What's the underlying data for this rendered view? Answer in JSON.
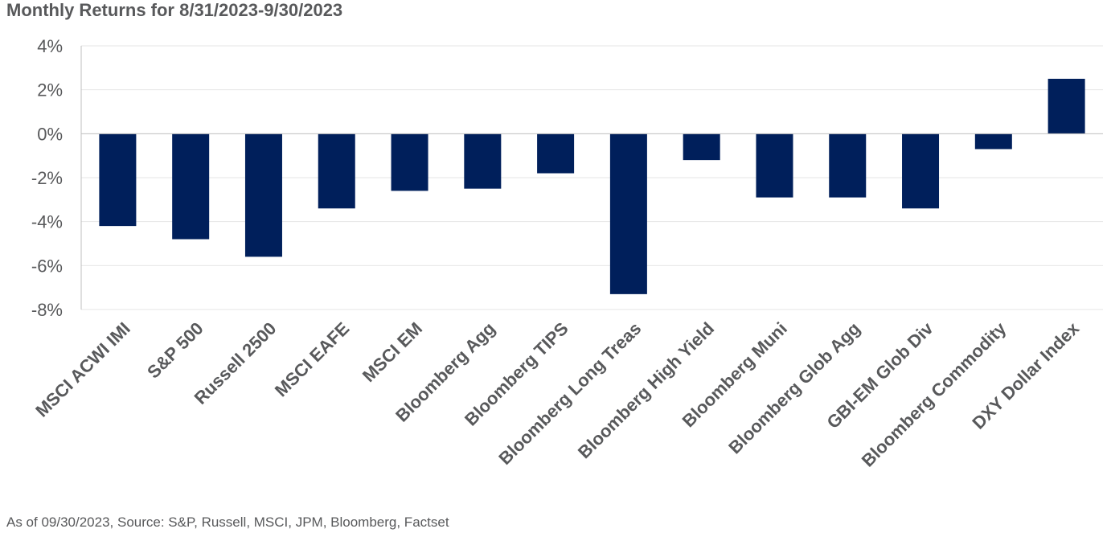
{
  "chart_data": {
    "type": "bar",
    "title": "Monthly Returns for 8/31/2023-9/30/2023",
    "categories": [
      "MSCI ACWI IMI",
      "S&P 500",
      "Russell 2500",
      "MSCI EAFE",
      "MSCI EM",
      "Bloomberg Agg",
      "Bloomberg TIPS",
      "Bloomberg Long Treas",
      "Bloomberg High Yield",
      "Bloomberg Muni",
      "Bloomberg Glob Agg",
      "GBI-EM Glob Div",
      "Bloomberg Commodity",
      "DXY Dollar Index"
    ],
    "values": [
      -4.2,
      -4.8,
      -5.6,
      -3.4,
      -2.6,
      -2.5,
      -1.8,
      -7.3,
      -1.2,
      -2.9,
      -2.9,
      -3.4,
      -0.7,
      2.5
    ],
    "ylim": [
      -8,
      4
    ],
    "yticks": [
      "4%",
      "2%",
      "0%",
      "-2%",
      "-4%",
      "-6%",
      "-8%"
    ],
    "ytick_values": [
      4,
      2,
      0,
      -2,
      -4,
      -6,
      -8
    ],
    "grid": true,
    "legend": "none",
    "bar_color": "#001f5b"
  },
  "footnote": "As of 09/30/2023, Source: S&P, Russell, MSCI, JPM, Bloomberg, Factset"
}
